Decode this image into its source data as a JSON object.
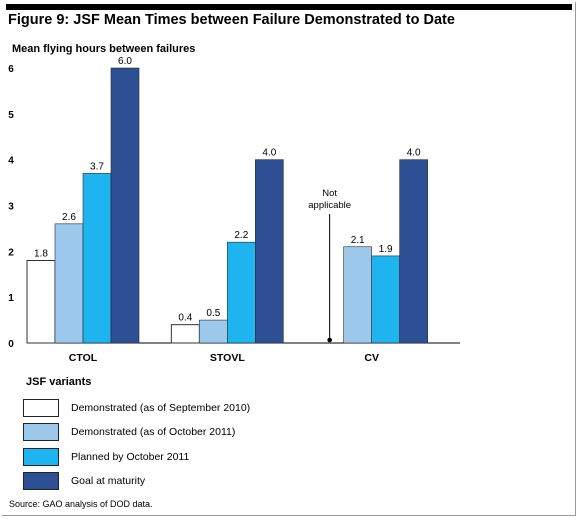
{
  "figure": {
    "title": "Figure 9: JSF Mean Times between Failure Demonstrated to Date",
    "source": "Source: GAO analysis of DOD data."
  },
  "chart_data": {
    "type": "bar",
    "title": "Figure 9: JSF Mean Times between Failure Demonstrated to Date",
    "ylabel": "Mean flying hours between failures",
    "xlabel": "JSF variants",
    "ylim": [
      0,
      6
    ],
    "yticks": [
      0,
      1,
      2,
      3,
      4,
      5,
      6
    ],
    "grid": false,
    "legend_position": "bottom",
    "categories": [
      "CTOL",
      "STOVL",
      "CV"
    ],
    "series": [
      {
        "name": "Demonstrated (as of September 2010)",
        "values": [
          1.8,
          0.4,
          null
        ],
        "labels": [
          "1.8",
          "0.4",
          null
        ],
        "color": "#ffffff"
      },
      {
        "name": "Demonstrated (as of October 2011)",
        "values": [
          2.6,
          0.5,
          2.1
        ],
        "labels": [
          "2.6",
          "0.5",
          "2.1"
        ],
        "color": "#9cc8ec"
      },
      {
        "name": "Planned by October 2011",
        "values": [
          3.7,
          2.2,
          1.9
        ],
        "labels": [
          "3.7",
          "2.2",
          "1.9"
        ],
        "color": "#1db4f0"
      },
      {
        "name": "Goal at maturity",
        "values": [
          6.0,
          4.0,
          4.0
        ],
        "labels": [
          "6.0",
          "4.0",
          "4.0"
        ],
        "color": "#2d4f94"
      }
    ],
    "annotations": [
      {
        "text_lines": [
          "Not",
          "applicable"
        ],
        "category": "CV",
        "series": "Demonstrated (as of September 2010)"
      }
    ]
  }
}
